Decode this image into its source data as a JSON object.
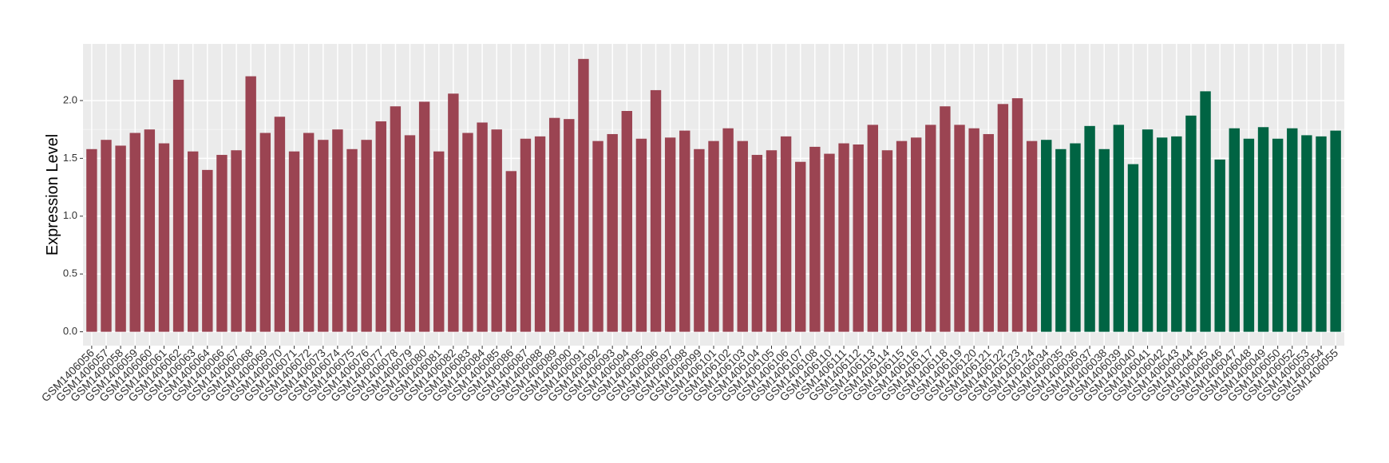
{
  "chart_data": {
    "type": "bar",
    "y_label": "Expression Level",
    "categories": [
      "GSM1406056",
      "GSM1406057",
      "GSM1406058",
      "GSM1406059",
      "GSM1406060",
      "GSM1406061",
      "GSM1406062",
      "GSM1406063",
      "GSM1406064",
      "GSM1406066",
      "GSM1406067",
      "GSM1406068",
      "GSM1406069",
      "GSM1406070",
      "GSM1406071",
      "GSM1406072",
      "GSM1406073",
      "GSM1406074",
      "GSM1406075",
      "GSM1406076",
      "GSM1406077",
      "GSM1406078",
      "GSM1406079",
      "GSM1406080",
      "GSM1406081",
      "GSM1406082",
      "GSM1406083",
      "GSM1406084",
      "GSM1406085",
      "GSM1406086",
      "GSM1406087",
      "GSM1406088",
      "GSM1406089",
      "GSM1406090",
      "GSM1406091",
      "GSM1406092",
      "GSM1406093",
      "GSM1406094",
      "GSM1406095",
      "GSM1406096",
      "GSM1406097",
      "GSM1406098",
      "GSM1406099",
      "GSM1406101",
      "GSM1406102",
      "GSM1406103",
      "GSM1406104",
      "GSM1406105",
      "GSM1406106",
      "GSM1406107",
      "GSM1406108",
      "GSM1406110",
      "GSM1406111",
      "GSM1406112",
      "GSM1406113",
      "GSM1406114",
      "GSM1406115",
      "GSM1406116",
      "GSM1406117",
      "GSM1406118",
      "GSM1406119",
      "GSM1406120",
      "GSM1406121",
      "GSM1406122",
      "GSM1406123",
      "GSM1406124",
      "GSM1406034",
      "GSM1406035",
      "GSM1406036",
      "GSM1406037",
      "GSM1406038",
      "GSM1406039",
      "GSM1406040",
      "GSM1406041",
      "GSM1406042",
      "GSM1406043",
      "GSM1406044",
      "GSM1406045",
      "GSM1406046",
      "GSM1406047",
      "GSM1406048",
      "GSM1406049",
      "GSM1406050",
      "GSM1406052",
      "GSM1406053",
      "GSM1406054",
      "GSM1406055"
    ],
    "values": [
      1.58,
      1.66,
      1.61,
      1.72,
      1.75,
      1.63,
      2.18,
      1.56,
      1.4,
      1.53,
      1.57,
      2.21,
      1.72,
      1.86,
      1.56,
      1.72,
      1.66,
      1.75,
      1.58,
      1.66,
      1.82,
      1.95,
      1.7,
      1.99,
      1.56,
      2.06,
      1.72,
      1.81,
      1.75,
      1.39,
      1.67,
      1.69,
      1.85,
      1.84,
      2.36,
      1.65,
      1.71,
      1.91,
      1.67,
      2.09,
      1.68,
      1.74,
      1.58,
      1.65,
      1.76,
      1.65,
      1.53,
      1.57,
      1.69,
      1.47,
      1.6,
      1.54,
      1.63,
      1.62,
      1.79,
      1.57,
      1.65,
      1.68,
      1.79,
      1.95,
      1.79,
      1.76,
      1.71,
      1.97,
      2.02,
      1.65,
      1.66,
      1.58,
      1.63,
      1.78,
      1.58,
      1.79,
      1.45,
      1.75,
      1.68,
      1.69,
      1.87,
      2.08,
      1.49,
      1.76,
      1.67,
      1.77,
      1.67,
      1.76,
      1.7,
      1.69,
      1.74
    ],
    "colors": [
      "#9b4452",
      "#9b4452",
      "#9b4452",
      "#9b4452",
      "#9b4452",
      "#9b4452",
      "#9b4452",
      "#9b4452",
      "#9b4452",
      "#9b4452",
      "#9b4452",
      "#9b4452",
      "#9b4452",
      "#9b4452",
      "#9b4452",
      "#9b4452",
      "#9b4452",
      "#9b4452",
      "#9b4452",
      "#9b4452",
      "#9b4452",
      "#9b4452",
      "#9b4452",
      "#9b4452",
      "#9b4452",
      "#9b4452",
      "#9b4452",
      "#9b4452",
      "#9b4452",
      "#9b4452",
      "#9b4452",
      "#9b4452",
      "#9b4452",
      "#9b4452",
      "#9b4452",
      "#9b4452",
      "#9b4452",
      "#9b4452",
      "#9b4452",
      "#9b4452",
      "#9b4452",
      "#9b4452",
      "#9b4452",
      "#9b4452",
      "#9b4452",
      "#9b4452",
      "#9b4452",
      "#9b4452",
      "#9b4452",
      "#9b4452",
      "#9b4452",
      "#9b4452",
      "#9b4452",
      "#9b4452",
      "#9b4452",
      "#9b4452",
      "#9b4452",
      "#9b4452",
      "#9b4452",
      "#9b4452",
      "#9b4452",
      "#9b4452",
      "#9b4452",
      "#9b4452",
      "#9b4452",
      "#9b4452",
      "#006443",
      "#006443",
      "#006443",
      "#006443",
      "#006443",
      "#006443",
      "#006443",
      "#006443",
      "#006443",
      "#006443",
      "#006443",
      "#006443",
      "#006443",
      "#006443",
      "#006443",
      "#006443",
      "#006443",
      "#006443",
      "#006443",
      "#006443",
      "#006443"
    ],
    "ylim": [
      -0.12,
      2.49
    ],
    "yticks": [
      {
        "value": 0,
        "label": "0.0"
      },
      0.5,
      {
        "value": 1,
        "label": "1.0"
      },
      1.5,
      {
        "value": 2,
        "label": "2.0"
      }
    ],
    "grid": true
  }
}
